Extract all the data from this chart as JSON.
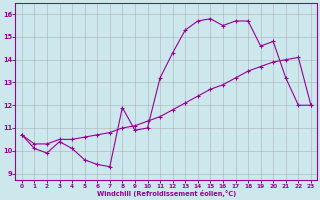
{
  "x": [
    0,
    1,
    2,
    3,
    4,
    5,
    6,
    7,
    8,
    9,
    10,
    11,
    12,
    13,
    14,
    15,
    16,
    17,
    18,
    19,
    20,
    21,
    22,
    23
  ],
  "line_jagged": [
    10.7,
    10.1,
    9.9,
    10.4,
    10.1,
    9.6,
    9.4,
    9.3,
    11.9,
    10.9,
    11.0,
    13.2,
    14.3,
    15.3,
    15.7,
    15.8,
    15.5,
    15.7,
    15.7,
    14.6,
    14.8,
    13.2,
    12.0,
    12.0
  ],
  "line_diagonal": [
    10.7,
    10.3,
    10.3,
    10.5,
    10.5,
    10.6,
    10.7,
    10.8,
    11.0,
    11.1,
    11.3,
    11.5,
    11.8,
    12.1,
    12.4,
    12.7,
    12.9,
    13.2,
    13.5,
    13.7,
    13.9,
    14.0,
    14.1,
    12.0
  ],
  "color": "#990099",
  "bg_color": "#cce8ec",
  "grid_color": "#b0b0b8",
  "ylabel_values": [
    9,
    10,
    11,
    12,
    13,
    14,
    15,
    16
  ],
  "xlabel_values": [
    0,
    1,
    2,
    3,
    4,
    5,
    6,
    7,
    8,
    9,
    10,
    11,
    12,
    13,
    14,
    15,
    16,
    17,
    18,
    19,
    20,
    21,
    22,
    23
  ],
  "xlabel": "Windchill (Refroidissement éolien,°C)",
  "ylim": [
    8.7,
    16.5
  ],
  "xlim": [
    -0.5,
    23.5
  ]
}
